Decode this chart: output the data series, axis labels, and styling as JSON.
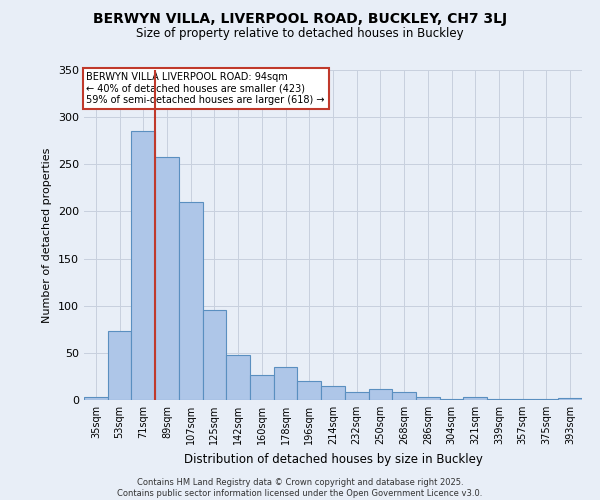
{
  "title_line1": "BERWYN VILLA, LIVERPOOL ROAD, BUCKLEY, CH7 3LJ",
  "title_line2": "Size of property relative to detached houses in Buckley",
  "xlabel": "Distribution of detached houses by size in Buckley",
  "ylabel": "Number of detached properties",
  "categories": [
    "35sqm",
    "53sqm",
    "71sqm",
    "89sqm",
    "107sqm",
    "125sqm",
    "142sqm",
    "160sqm",
    "178sqm",
    "196sqm",
    "214sqm",
    "232sqm",
    "250sqm",
    "268sqm",
    "286sqm",
    "304sqm",
    "321sqm",
    "339sqm",
    "357sqm",
    "375sqm",
    "393sqm"
  ],
  "values": [
    3,
    73,
    285,
    258,
    210,
    95,
    48,
    27,
    35,
    20,
    15,
    8,
    12,
    8,
    3,
    1,
    3,
    1,
    1,
    1,
    2
  ],
  "highlight_index": 3,
  "bar_color": "#aec6e8",
  "bar_edge_color": "#5a8fc0",
  "highlight_line_color": "#c0392b",
  "annotation_text": "BERWYN VILLA LIVERPOOL ROAD: 94sqm\n← 40% of detached houses are smaller (423)\n59% of semi-detached houses are larger (618) →",
  "annotation_box_facecolor": "#ffffff",
  "annotation_box_edgecolor": "#c0392b",
  "footer": "Contains HM Land Registry data © Crown copyright and database right 2025.\nContains public sector information licensed under the Open Government Licence v3.0.",
  "ylim": [
    0,
    350
  ],
  "yticks": [
    0,
    50,
    100,
    150,
    200,
    250,
    300,
    350
  ],
  "background_color": "#e8eef7",
  "axes_background": "#e8eef7",
  "grid_color": "#c8d0de"
}
